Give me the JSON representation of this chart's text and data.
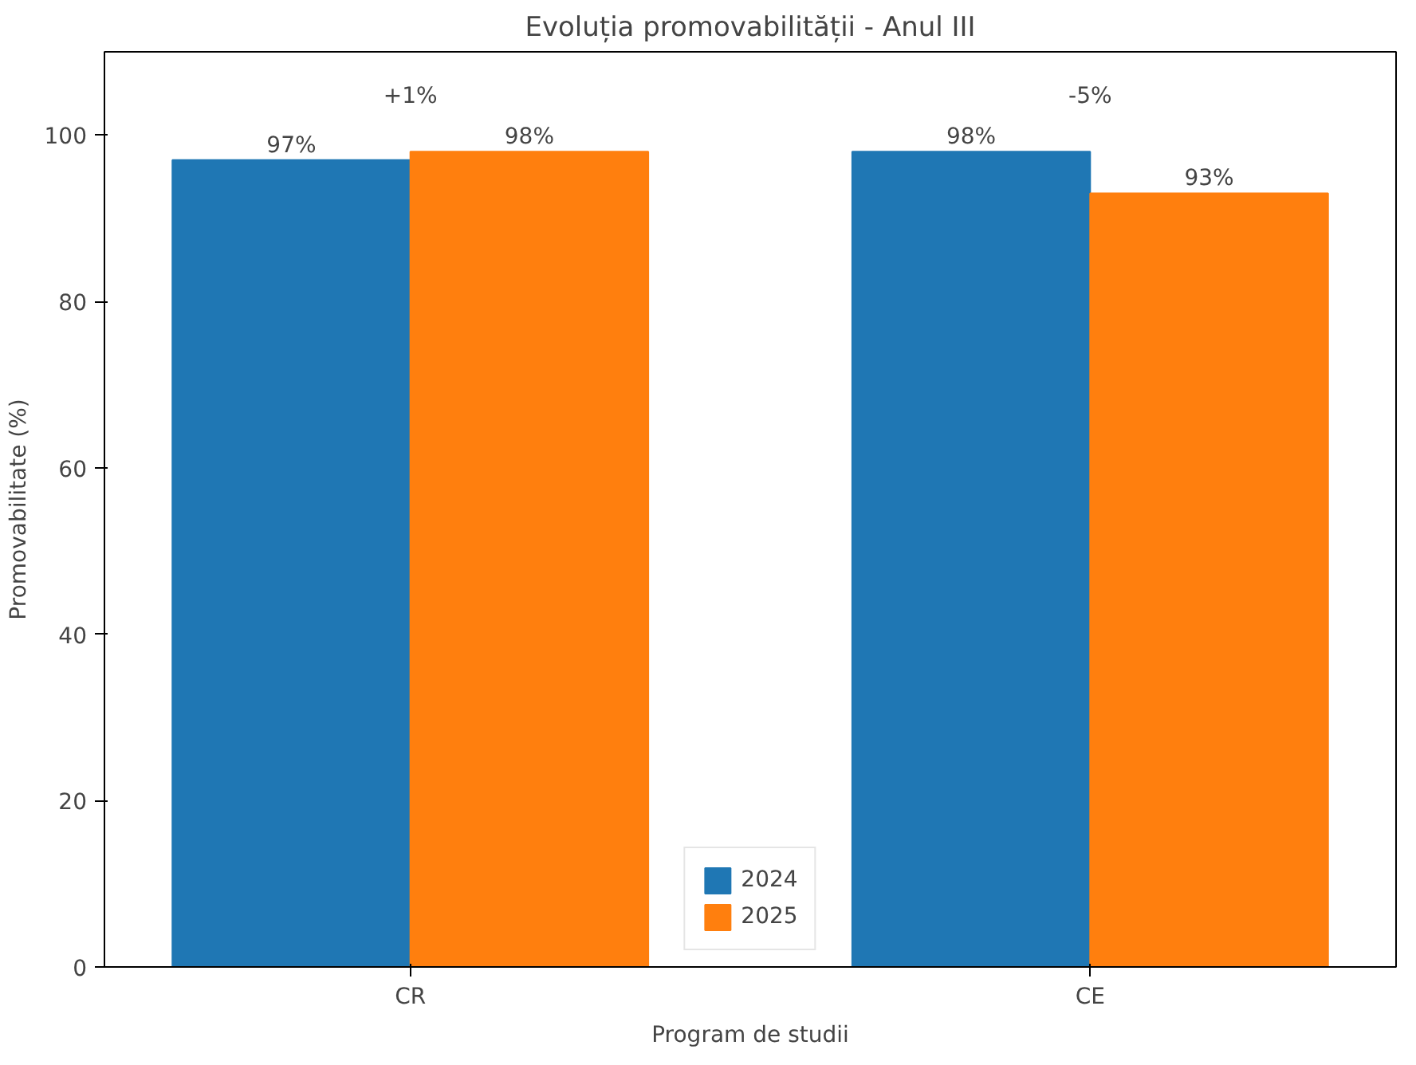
{
  "chart_data": {
    "type": "bar",
    "title": "Evoluția promovabilității - Anul III",
    "xlabel": "Program de studii",
    "ylabel": "Promovabilitate (%)",
    "categories": [
      "CR",
      "CE"
    ],
    "series": [
      {
        "name": "2024",
        "color": "#1f77b4",
        "values": [
          97,
          98
        ],
        "value_labels": [
          "97%",
          "98%"
        ]
      },
      {
        "name": "2025",
        "color": "#ff7f0e",
        "values": [
          98,
          93
        ],
        "value_labels": [
          "98%",
          "93%"
        ]
      }
    ],
    "annotations": [
      "+1%",
      "-5%"
    ],
    "ylim": [
      0,
      110
    ],
    "yticks": [
      0,
      20,
      40,
      60,
      80,
      100
    ],
    "grid": false,
    "legend": "bottom"
  }
}
